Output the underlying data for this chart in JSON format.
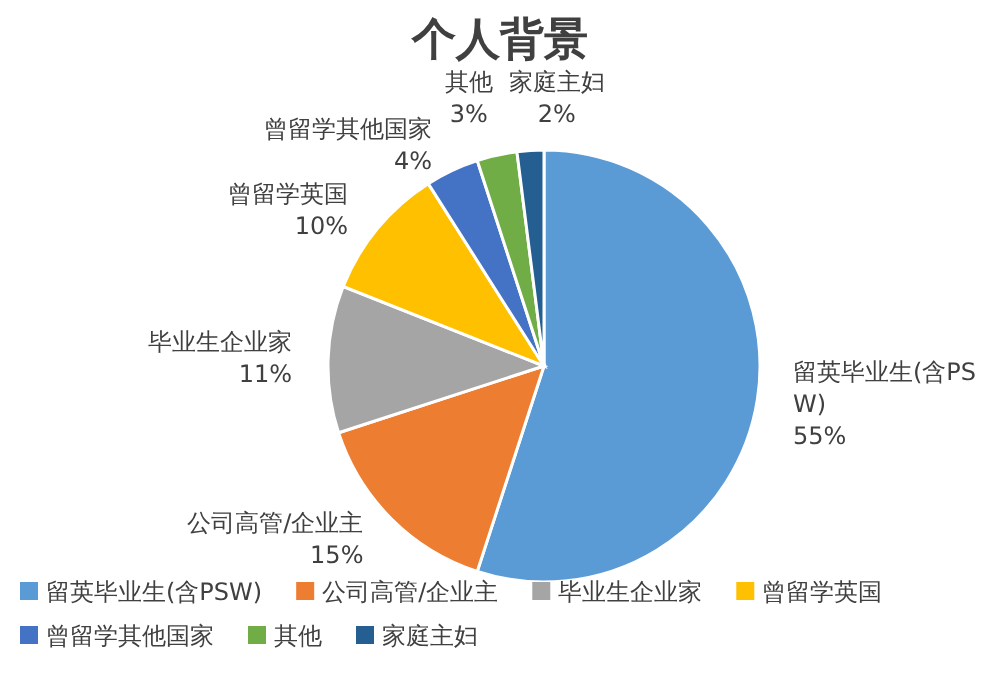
{
  "chart_data": {
    "type": "pie",
    "title": "个人背景",
    "categories": [
      "留英毕业生(含PSW)",
      "公司高管/企业主",
      "毕业生企业家",
      "曾留学英国",
      "曾留学其他国家",
      "其他",
      "家庭主妇"
    ],
    "values": [
      55,
      15,
      11,
      10,
      4,
      3,
      2
    ],
    "value_labels": [
      "55%",
      "15%",
      "11%",
      "10%",
      "4%",
      "3%",
      "2%"
    ],
    "colors": [
      "#5b9bd5",
      "#ed7d31",
      "#a5a5a5",
      "#ffc000",
      "#4472c4",
      "#70ad47",
      "#255e91"
    ],
    "legend": "bottom"
  }
}
